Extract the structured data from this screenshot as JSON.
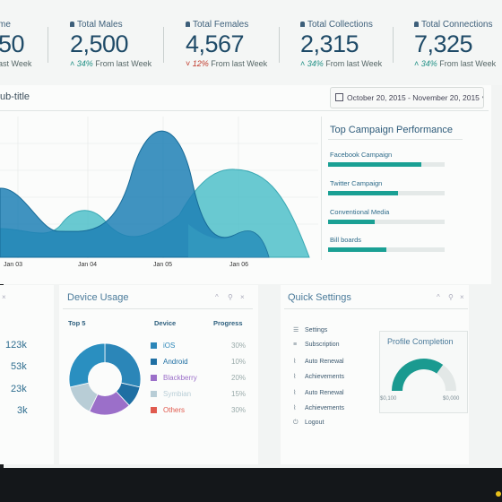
{
  "stats": [
    {
      "label": "me",
      "value": "50",
      "change_pct": "",
      "change_text": "ast Week",
      "direction": "up"
    },
    {
      "label": "Total Males",
      "value": "2,500",
      "change_pct": "34%",
      "change_text": "From last Week",
      "direction": "up"
    },
    {
      "label": "Total Females",
      "value": "4,567",
      "change_pct": "12%",
      "change_text": "From last Week",
      "direction": "down"
    },
    {
      "label": "Total Collections",
      "value": "2,315",
      "change_pct": "34%",
      "change_text": "From last Week",
      "direction": "up"
    },
    {
      "label": "Total Connections",
      "value": "7,325",
      "change_pct": "34%",
      "change_text": "From last Week",
      "direction": "up"
    }
  ],
  "colors": {
    "accent": "#1aa094",
    "blue": "#2b86b8",
    "teal": "#53c3cc",
    "down": "#c0392b"
  },
  "main_chart": {
    "title": "ub-title",
    "date_range": "October 20, 2015 - November 20, 2015",
    "x_ticks": [
      "Jan 03",
      "Jan 04",
      "Jan 05",
      "Jan 06"
    ]
  },
  "campaign": {
    "title": "Top Campaign Performance",
    "items": [
      {
        "label": "Facebook Campaign",
        "value": 0.8
      },
      {
        "label": "Twitter Campaign",
        "value": 0.6
      },
      {
        "label": "Conventional Media",
        "value": 0.4
      },
      {
        "label": "Bill boards",
        "value": 0.5
      }
    ]
  },
  "left_values": [
    "123k",
    "53k",
    "23k",
    "3k"
  ],
  "device_usage": {
    "title": "Device Usage",
    "col_top": "Top 5",
    "col_device": "Device",
    "col_progress": "Progress",
    "rows": [
      {
        "name": "iOS",
        "pct": "30%",
        "color": "#2b86b8",
        "value": 30
      },
      {
        "name": "Android",
        "pct": "10%",
        "color": "#1f6fa3",
        "value": 10
      },
      {
        "name": "Blackberry",
        "pct": "20%",
        "color": "#9b6fc9",
        "value": 20
      },
      {
        "name": "Symbian",
        "pct": "15%",
        "color": "#b8cdd6",
        "value": 15
      },
      {
        "name": "Others",
        "pct": "30%",
        "color": "#e05a4e",
        "value": 30
      }
    ]
  },
  "quick_settings": {
    "title": "Quick Settings",
    "items": [
      {
        "icon": "list-icon",
        "label": "Settings"
      },
      {
        "icon": "menu-icon",
        "label": "Subscription"
      },
      {
        "icon": "chart-icon",
        "label": "Auto Renewal"
      },
      {
        "icon": "chart-icon",
        "label": "Achievements"
      },
      {
        "icon": "chart-icon",
        "label": "Auto Renewal"
      },
      {
        "icon": "chart-icon",
        "label": "Achievements"
      },
      {
        "icon": "logout-icon",
        "label": "Logout"
      }
    ]
  },
  "profile_completion": {
    "title": "Profile Completion",
    "min_label": "$0,100",
    "max_label": "$0,000",
    "value": 0.7
  }
}
